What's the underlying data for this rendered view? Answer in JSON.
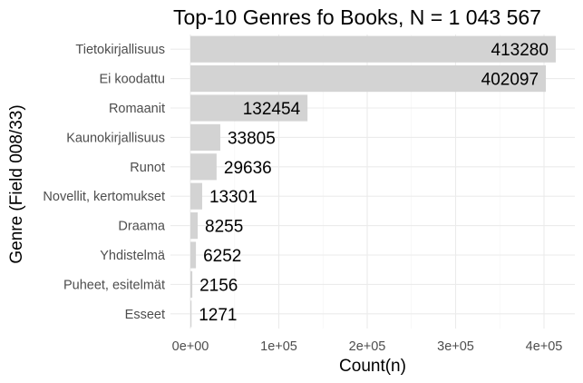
{
  "chart_data": {
    "type": "bar",
    "orientation": "horizontal",
    "title": "Top-10 Genres fo Books, N = 1 043 567",
    "xlabel": "Count(n)",
    "ylabel": "Genre (Field 008/33)",
    "categories": [
      "Tietokirjallisuus",
      "Ei koodattu",
      "Romaanit",
      "Kaunokirjallisuus",
      "Runot",
      "Novellit, kertomukset",
      "Draama",
      "Yhdistelmä",
      "Puheet, esitelmät",
      "Esseet"
    ],
    "values": [
      413280,
      402097,
      132454,
      33805,
      29636,
      13301,
      8255,
      6252,
      2156,
      1271
    ],
    "data_labels": [
      "413280",
      "402097",
      "132454",
      "33805",
      "29636",
      "13301",
      "8255",
      "6252",
      "2156",
      "1271"
    ],
    "xlim": [
      0,
      434000
    ],
    "x_ticks": [
      0,
      100000,
      200000,
      300000,
      400000
    ],
    "x_tick_labels": [
      "0e+00",
      "1e+05",
      "2e+05",
      "3e+05",
      "4e+05"
    ],
    "bar_color": "#d3d3d3",
    "grid": true,
    "theme": "minimal",
    "legend": "none"
  }
}
